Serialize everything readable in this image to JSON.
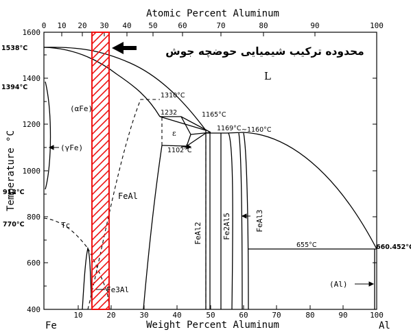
{
  "diagram": {
    "top_axis_title": "Atomic Percent Aluminum",
    "bottom_axis_title": "Weight Percent Aluminum",
    "y_axis_title": "Temperature °C",
    "top_ticks": [
      "0",
      "10",
      "20",
      "30",
      "40",
      "50",
      "60",
      "70",
      "80",
      "90",
      "100"
    ],
    "bottom_ticks": [
      "10",
      "20",
      "30",
      "40",
      "50",
      "60",
      "70",
      "80",
      "90",
      "100"
    ],
    "y_ticks": [
      "1600",
      "1400",
      "1200",
      "1000",
      "800",
      "600",
      "400"
    ],
    "left_element": "Fe",
    "right_element": "Al",
    "annotation_text": "محدوده ترکیب شیمیایی حوضچه جوش",
    "annotation_color": "#ee1111",
    "labels": {
      "t1538": "1538°C",
      "t1394": "1394°C",
      "t912": "912°C",
      "t770": "770°C",
      "t1310": "1310°C",
      "t1232": "1232",
      "t1165": "1165°C",
      "t1169": "1169°C",
      "t1160": "~1160°C",
      "t1102": "1102°C",
      "t655": "655°C",
      "t660": "660.452°C",
      "liquid": "L",
      "alpha_fe": "(αFe)",
      "gamma_fe": "(γFe)",
      "feal": "FeAl",
      "epsilon": "ε",
      "tc": "Tc",
      "fe3al": "Fe3Al",
      "feal2": "FeAl2",
      "fe2al5": "Fe2Al5",
      "feal3": "FeAl3",
      "al_phase": "(Al)"
    }
  }
}
